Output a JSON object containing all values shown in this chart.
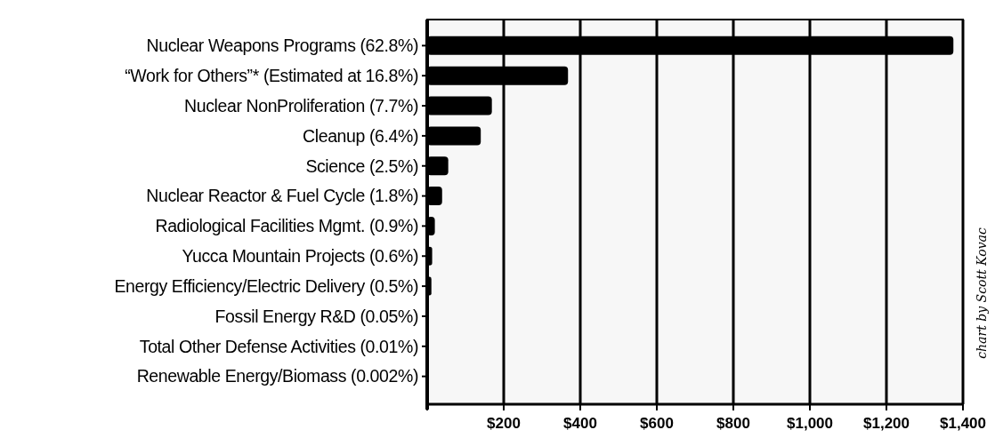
{
  "chart_data": {
    "type": "bar",
    "orientation": "horizontal",
    "categories": [
      "Nuclear Weapons Programs (62.8%)",
      "“Work for Others”* (Estimated at 16.8%)",
      "Nuclear NonProliferation (7.7%)",
      "Cleanup (6.4%)",
      "Science (2.5%)",
      "Nuclear Reactor & Fuel Cycle (1.8%)",
      "Radiological Facilities Mgmt. (0.9%)",
      "Yucca Mountain Projects (0.6%)",
      "Energy Efficiency/Electric Delivery (0.5%)",
      "Fossil Energy R&D (0.05%)",
      "Total Other Defense Activities (0.01%)",
      "Renewable Energy/Biomass (0.002%)"
    ],
    "values": [
      1375,
      368,
      169,
      140,
      55,
      39,
      20,
      13,
      11,
      1,
      0,
      0
    ],
    "color": "#000000",
    "xlim": [
      0,
      1400
    ],
    "xticks": [
      {
        "value": 0,
        "label": null
      },
      {
        "value": 200,
        "label": "$200"
      },
      {
        "value": 400,
        "label": "$400"
      },
      {
        "value": 600,
        "label": "$600"
      },
      {
        "value": 800,
        "label": "$800"
      },
      {
        "value": 1000,
        "label": "$1,000"
      },
      {
        "value": 1200,
        "label": "$1,200"
      },
      {
        "value": 1400,
        "label": "$1,400"
      }
    ],
    "grid": "x",
    "annotations": [
      "chart by Scott Kovac"
    ]
  }
}
